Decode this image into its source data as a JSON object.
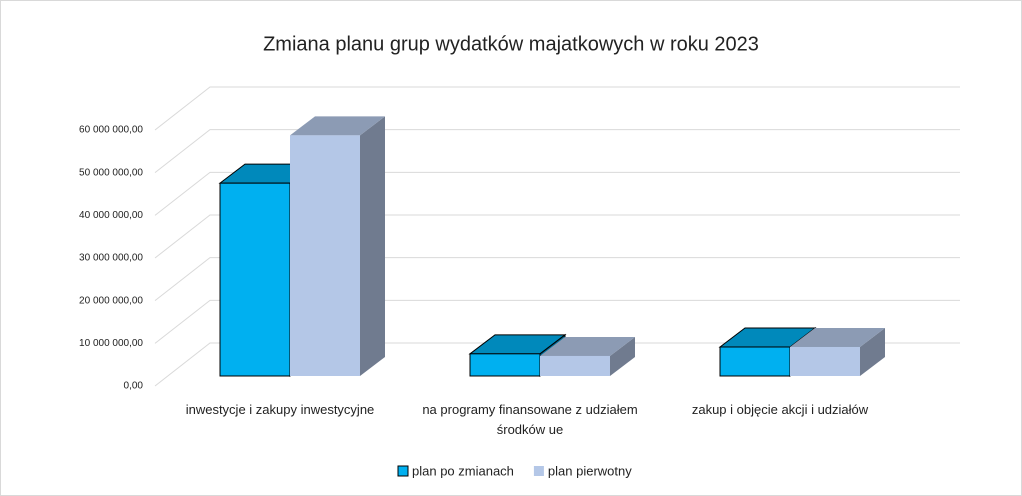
{
  "chart_data": {
    "type": "bar3d",
    "title": "Zmiana planu grup wydatków majatkowych w roku 2023",
    "categories": [
      "inwestycje i zakupy inwestycyjne",
      "na programy finansowane z udziałem środków ue",
      "zakup i objęcie akcji i udziałów"
    ],
    "series": [
      {
        "name": "plan po zmianach",
        "color": "#00b0f0",
        "values": [
          45200000,
          5200000,
          6800000
        ]
      },
      {
        "name": "plan pierwotny",
        "color": "#b4c7e7",
        "values": [
          56400000,
          4700000,
          6800000
        ]
      }
    ],
    "ylim": [
      0,
      60000000
    ],
    "yticks": [
      {
        "value": 0,
        "label": "0,00"
      },
      {
        "value": 10000000,
        "label": "10 000 000,00"
      },
      {
        "value": 20000000,
        "label": "20 000 000,00"
      },
      {
        "value": 30000000,
        "label": "30 000 000,00"
      },
      {
        "value": 40000000,
        "label": "40 000 000,00"
      },
      {
        "value": 50000000,
        "label": "50 000 000,00"
      },
      {
        "value": 60000000,
        "label": "60 000 000,00"
      }
    ],
    "grid": true,
    "legend": "bottom"
  }
}
